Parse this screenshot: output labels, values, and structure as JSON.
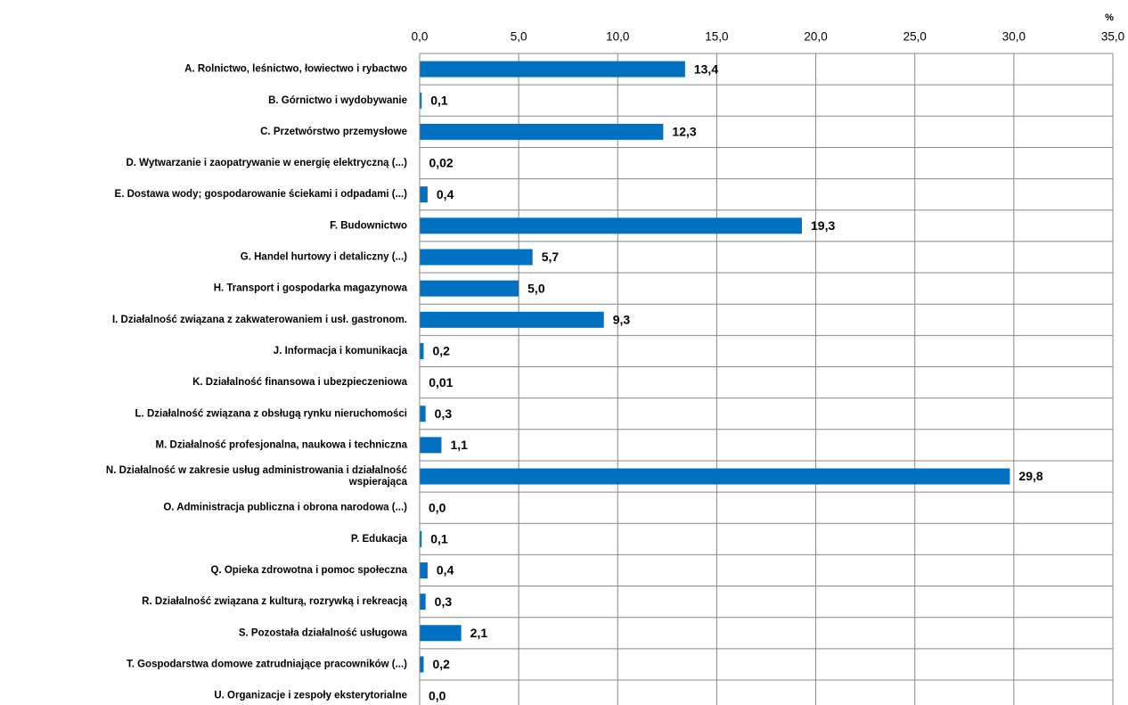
{
  "chart_data": {
    "type": "bar",
    "orientation": "horizontal",
    "axis_label": "%",
    "categories": [
      "A. Rolnictwo, leśnictwo, łowiectwo i rybactwo",
      "B. Górnictwo i wydobywanie",
      "C. Przetwórstwo przemysłowe",
      "D. Wytwarzanie i zaopatrywanie w energię elektryczną (...)",
      "E. Dostawa wody; gospodarowanie ściekami i odpadami (...)",
      "F. Budownictwo",
      "G. Handel hurtowy i detaliczny (...)",
      "H. Transport i gospodarka magazynowa",
      "I. Działalność związana z zakwaterowaniem i usł. gastronom.",
      "J. Informacja i komunikacja",
      "K. Działalność finansowa i ubezpieczeniowa",
      "L. Działalność związana z obsługą rynku nieruchomości",
      "M. Działalność profesjonalna, naukowa i techniczna",
      "N. Działalność w zakresie usług administrowania i działalność\nwspierająca",
      "O. Administracja publiczna i obrona narodowa (...)",
      "P. Edukacja",
      "Q. Opieka zdrowotna i pomoc społeczna",
      "R. Działalność związana z kulturą, rozrywką i rekreacją",
      "S. Pozostała działalność usługowa",
      "T. Gospodarstwa domowe zatrudniające pracowników (...)",
      "U. Organizacje i zespoły eksterytorialne"
    ],
    "values": [
      13.4,
      0.1,
      12.3,
      0.02,
      0.4,
      19.3,
      5.7,
      5.0,
      9.3,
      0.2,
      0.01,
      0.3,
      1.1,
      29.8,
      0.0,
      0.1,
      0.4,
      0.3,
      2.1,
      0.2,
      0.0
    ],
    "value_labels": [
      "13,4",
      "0,1",
      "12,3",
      "0,02",
      "0,4",
      "19,3",
      "5,7",
      "5,0",
      "9,3",
      "0,2",
      "0,01",
      "0,3",
      "1,1",
      "29,8",
      "0,0",
      "0,1",
      "0,4",
      "0,3",
      "2,1",
      "0,2",
      "0,0"
    ],
    "color": "#0070c0",
    "xlim": [
      0,
      35
    ],
    "xticks": [
      {
        "value": 0,
        "label": "0,0"
      },
      {
        "value": 5,
        "label": "5,0"
      },
      {
        "value": 10,
        "label": "10,0"
      },
      {
        "value": 15,
        "label": "15,0"
      },
      {
        "value": 20,
        "label": "20,0"
      },
      {
        "value": 25,
        "label": "25,0"
      },
      {
        "value": 30,
        "label": "30,0"
      },
      {
        "value": 35,
        "label": "35,0"
      }
    ],
    "grid": true
  }
}
